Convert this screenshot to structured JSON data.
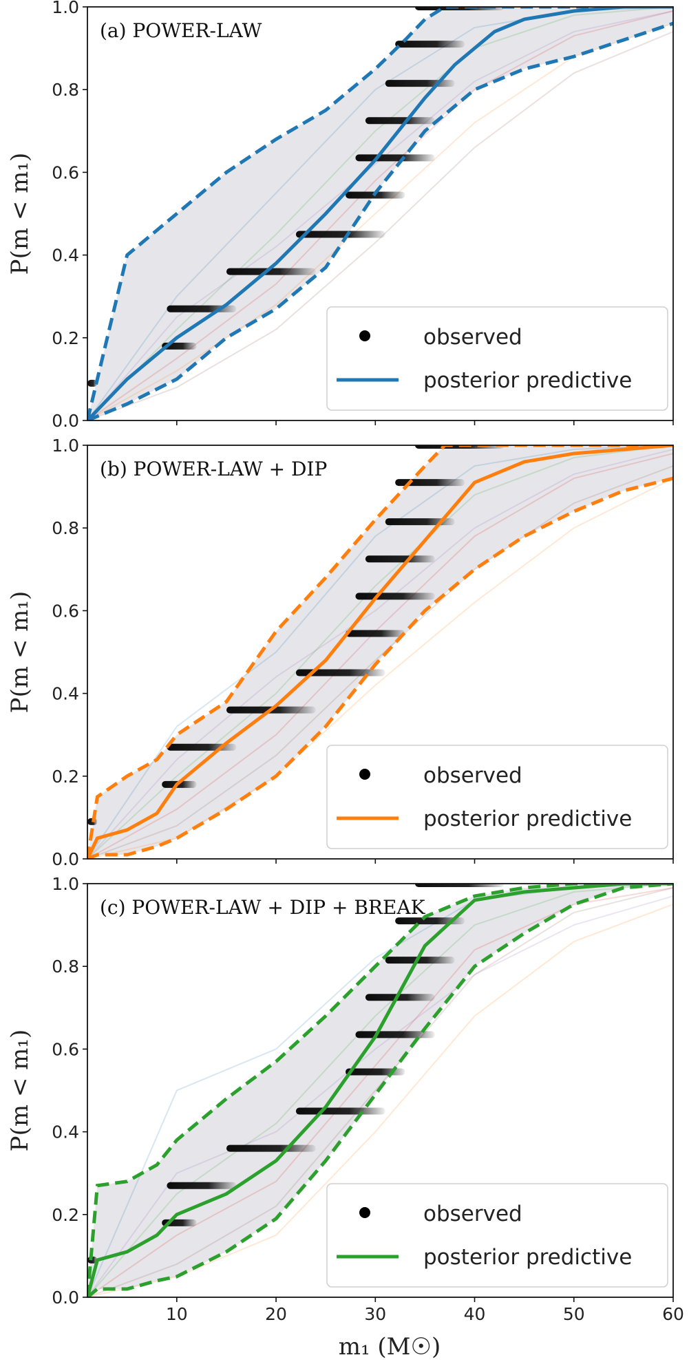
{
  "figure": {
    "xlabel": "m₁ (M☉)",
    "ylabel": "P(m < m₁)",
    "xlim": [
      1,
      60
    ],
    "ylim": [
      0,
      1
    ],
    "xticks": [
      10,
      20,
      30,
      40,
      50,
      60
    ],
    "yticks": [
      "0.0",
      "0.2",
      "0.4",
      "0.6",
      "0.8",
      "1.0"
    ],
    "legend_position": "bottom-right"
  },
  "chart_data": [
    {
      "type": "line",
      "title": "(a) POWER-LAW",
      "color": "#1f77b4",
      "legend": [
        "observed",
        "posterior predictive"
      ],
      "observed": [
        {
          "y": 0.09,
          "x": [
            1.0,
            2.0
          ]
        },
        {
          "y": 0.18,
          "x": [
            8.5,
            12.0
          ]
        },
        {
          "y": 0.27,
          "x": [
            9.0,
            16.0
          ]
        },
        {
          "y": 0.36,
          "x": [
            15.0,
            24.0
          ]
        },
        {
          "y": 0.45,
          "x": [
            22.0,
            31.0
          ]
        },
        {
          "y": 0.545,
          "x": [
            27.0,
            33.0
          ]
        },
        {
          "y": 0.635,
          "x": [
            28.0,
            36.0
          ]
        },
        {
          "y": 0.725,
          "x": [
            29.0,
            36.0
          ]
        },
        {
          "y": 0.815,
          "x": [
            31.0,
            38.0
          ]
        },
        {
          "y": 0.91,
          "x": [
            32.0,
            39.0
          ]
        },
        {
          "y": 1.0,
          "x": [
            34.0,
            43.0
          ]
        }
      ],
      "median": {
        "x": [
          1,
          5,
          10,
          15,
          20,
          25,
          30,
          35,
          38,
          40,
          42,
          45,
          50,
          55,
          60
        ],
        "y": [
          0.0,
          0.1,
          0.2,
          0.28,
          0.38,
          0.5,
          0.63,
          0.78,
          0.86,
          0.9,
          0.94,
          0.97,
          0.99,
          1.0,
          1.0
        ]
      },
      "upper": {
        "x": [
          1,
          5,
          10,
          15,
          20,
          25,
          30,
          33,
          35,
          37,
          60
        ],
        "y": [
          0.0,
          0.4,
          0.5,
          0.6,
          0.68,
          0.75,
          0.85,
          0.92,
          0.97,
          1.0,
          1.0
        ]
      },
      "lower": {
        "x": [
          1,
          5,
          10,
          15,
          20,
          25,
          30,
          35,
          40,
          45,
          50,
          55,
          60
        ],
        "y": [
          0.0,
          0.04,
          0.1,
          0.2,
          0.27,
          0.37,
          0.55,
          0.7,
          0.8,
          0.85,
          0.88,
          0.92,
          0.96
        ]
      },
      "sample_curves": [
        {
          "x": [
            1,
            10,
            20,
            30,
            40,
            50,
            60
          ],
          "y": [
            0.0,
            0.3,
            0.55,
            0.8,
            0.95,
            0.99,
            1.0
          ]
        },
        {
          "x": [
            1,
            10,
            20,
            30,
            40,
            50,
            60
          ],
          "y": [
            0.0,
            0.12,
            0.28,
            0.5,
            0.72,
            0.88,
            0.96
          ]
        },
        {
          "x": [
            1,
            10,
            20,
            30,
            40,
            50,
            60
          ],
          "y": [
            0.0,
            0.22,
            0.45,
            0.7,
            0.9,
            0.98,
            1.0
          ]
        },
        {
          "x": [
            1,
            10,
            20,
            30,
            40,
            50,
            60
          ],
          "y": [
            0.0,
            0.15,
            0.33,
            0.58,
            0.8,
            0.93,
            0.99
          ]
        },
        {
          "x": [
            1,
            10,
            20,
            30,
            40,
            50,
            60
          ],
          "y": [
            0.0,
            0.25,
            0.42,
            0.62,
            0.82,
            0.94,
            0.99
          ]
        },
        {
          "x": [
            1,
            10,
            20,
            30,
            40,
            50,
            60
          ],
          "y": [
            0.0,
            0.08,
            0.22,
            0.43,
            0.66,
            0.84,
            0.94
          ]
        }
      ]
    },
    {
      "type": "line",
      "title": "(b) POWER-LAW + DIP",
      "color": "#ff7f0e",
      "legend": [
        "observed",
        "posterior predictive"
      ],
      "observed": [
        {
          "y": 0.09,
          "x": [
            1.0,
            2.0
          ]
        },
        {
          "y": 0.18,
          "x": [
            8.5,
            12.0
          ]
        },
        {
          "y": 0.27,
          "x": [
            9.0,
            16.0
          ]
        },
        {
          "y": 0.36,
          "x": [
            15.0,
            24.0
          ]
        },
        {
          "y": 0.45,
          "x": [
            22.0,
            31.0
          ]
        },
        {
          "y": 0.545,
          "x": [
            27.0,
            33.0
          ]
        },
        {
          "y": 0.635,
          "x": [
            28.0,
            36.0
          ]
        },
        {
          "y": 0.725,
          "x": [
            29.0,
            36.0
          ]
        },
        {
          "y": 0.815,
          "x": [
            31.0,
            38.0
          ]
        },
        {
          "y": 0.91,
          "x": [
            32.0,
            39.0
          ]
        },
        {
          "y": 1.0,
          "x": [
            34.0,
            43.0
          ]
        }
      ],
      "median": {
        "x": [
          1,
          2,
          5,
          8,
          10,
          15,
          20,
          25,
          30,
          35,
          40,
          45,
          50,
          55,
          60
        ],
        "y": [
          0.0,
          0.05,
          0.07,
          0.11,
          0.18,
          0.28,
          0.37,
          0.48,
          0.63,
          0.77,
          0.91,
          0.96,
          0.98,
          0.99,
          1.0
        ]
      },
      "upper": {
        "x": [
          1,
          2,
          5,
          8,
          10,
          15,
          20,
          25,
          30,
          35,
          37,
          60
        ],
        "y": [
          0.0,
          0.15,
          0.2,
          0.24,
          0.3,
          0.38,
          0.55,
          0.68,
          0.82,
          0.95,
          1.0,
          1.0
        ]
      },
      "lower": {
        "x": [
          1,
          2,
          5,
          8,
          10,
          15,
          20,
          25,
          30,
          35,
          40,
          45,
          50,
          55,
          60
        ],
        "y": [
          0.0,
          0.01,
          0.01,
          0.03,
          0.05,
          0.12,
          0.2,
          0.32,
          0.47,
          0.6,
          0.7,
          0.78,
          0.84,
          0.89,
          0.92
        ]
      },
      "sample_curves": [
        {
          "x": [
            1,
            10,
            20,
            30,
            40,
            50,
            60
          ],
          "y": [
            0.0,
            0.32,
            0.5,
            0.78,
            0.95,
            0.99,
            1.0
          ]
        },
        {
          "x": [
            1,
            10,
            20,
            30,
            40,
            50,
            60
          ],
          "y": [
            0.0,
            0.05,
            0.2,
            0.42,
            0.62,
            0.8,
            0.92
          ]
        },
        {
          "x": [
            1,
            10,
            20,
            30,
            40,
            50,
            60
          ],
          "y": [
            0.0,
            0.2,
            0.4,
            0.66,
            0.88,
            0.97,
            1.0
          ]
        },
        {
          "x": [
            1,
            10,
            20,
            30,
            40,
            50,
            60
          ],
          "y": [
            0.0,
            0.12,
            0.3,
            0.55,
            0.78,
            0.92,
            0.98
          ]
        },
        {
          "x": [
            1,
            10,
            20,
            30,
            40,
            50,
            60
          ],
          "y": [
            0.0,
            0.24,
            0.44,
            0.6,
            0.8,
            0.93,
            0.99
          ]
        },
        {
          "x": [
            1,
            10,
            20,
            30,
            40,
            50,
            60
          ],
          "y": [
            0.0,
            0.08,
            0.25,
            0.48,
            0.7,
            0.86,
            0.95
          ]
        }
      ]
    },
    {
      "type": "line",
      "title": "(c) POWER-LAW + DIP + BREAK",
      "color": "#2ca02c",
      "legend": [
        "observed",
        "posterior predictive"
      ],
      "observed": [
        {
          "y": 0.09,
          "x": [
            1.0,
            2.0
          ]
        },
        {
          "y": 0.18,
          "x": [
            8.5,
            12.0
          ]
        },
        {
          "y": 0.27,
          "x": [
            9.0,
            16.0
          ]
        },
        {
          "y": 0.36,
          "x": [
            15.0,
            24.0
          ]
        },
        {
          "y": 0.45,
          "x": [
            22.0,
            31.0
          ]
        },
        {
          "y": 0.545,
          "x": [
            27.0,
            33.0
          ]
        },
        {
          "y": 0.635,
          "x": [
            28.0,
            36.0
          ]
        },
        {
          "y": 0.725,
          "x": [
            29.0,
            36.0
          ]
        },
        {
          "y": 0.815,
          "x": [
            31.0,
            38.0
          ]
        },
        {
          "y": 0.91,
          "x": [
            32.0,
            39.0
          ]
        },
        {
          "y": 1.0,
          "x": [
            34.0,
            43.0
          ]
        }
      ],
      "median": {
        "x": [
          1,
          2,
          5,
          8,
          10,
          15,
          20,
          25,
          30,
          35,
          40,
          45,
          50,
          55,
          60
        ],
        "y": [
          0.0,
          0.09,
          0.11,
          0.15,
          0.2,
          0.25,
          0.33,
          0.46,
          0.63,
          0.85,
          0.96,
          0.98,
          0.99,
          1.0,
          1.0
        ]
      },
      "upper": {
        "x": [
          1,
          2,
          5,
          8,
          10,
          15,
          20,
          25,
          30,
          35,
          40,
          45,
          50,
          55,
          60
        ],
        "y": [
          0.0,
          0.27,
          0.28,
          0.32,
          0.38,
          0.48,
          0.57,
          0.68,
          0.8,
          0.92,
          0.97,
          0.99,
          1.0,
          1.0,
          1.0
        ]
      },
      "lower": {
        "x": [
          1,
          2,
          5,
          8,
          10,
          15,
          20,
          25,
          30,
          35,
          40,
          45,
          50,
          55,
          60
        ],
        "y": [
          0.0,
          0.02,
          0.02,
          0.04,
          0.05,
          0.11,
          0.19,
          0.33,
          0.49,
          0.65,
          0.8,
          0.88,
          0.95,
          0.99,
          1.0
        ]
      },
      "sample_curves": [
        {
          "x": [
            1,
            10,
            20,
            30,
            40,
            50,
            60
          ],
          "y": [
            0.0,
            0.5,
            0.6,
            0.82,
            0.96,
            0.99,
            1.0
          ]
        },
        {
          "x": [
            1,
            10,
            20,
            30,
            40,
            50,
            60
          ],
          "y": [
            0.0,
            0.05,
            0.15,
            0.4,
            0.68,
            0.86,
            0.95
          ]
        },
        {
          "x": [
            1,
            10,
            20,
            30,
            40,
            50,
            60
          ],
          "y": [
            0.0,
            0.25,
            0.42,
            0.68,
            0.9,
            0.98,
            1.0
          ]
        },
        {
          "x": [
            1,
            10,
            20,
            30,
            40,
            50,
            60
          ],
          "y": [
            0.0,
            0.15,
            0.28,
            0.56,
            0.84,
            0.95,
            0.99
          ]
        },
        {
          "x": [
            1,
            10,
            20,
            30,
            40,
            50,
            60
          ],
          "y": [
            0.0,
            0.3,
            0.4,
            0.6,
            0.78,
            0.9,
            0.97
          ]
        },
        {
          "x": [
            1,
            10,
            20,
            30,
            40,
            50,
            60
          ],
          "y": [
            0.0,
            0.08,
            0.22,
            0.5,
            0.78,
            0.93,
            0.99
          ]
        }
      ]
    }
  ]
}
